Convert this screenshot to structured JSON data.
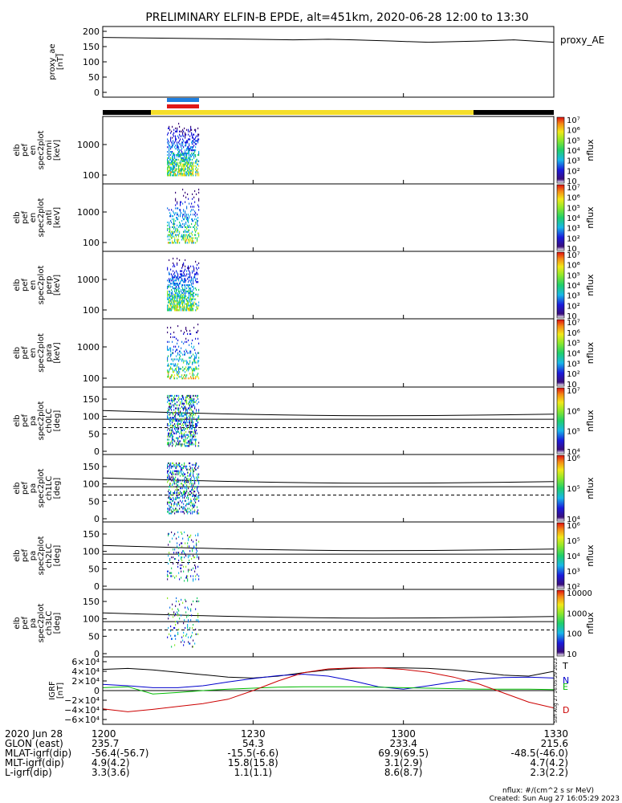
{
  "title": "PRELIMINARY ELFIN-B EPDE, alt=451km, 2020-06-28 12:00 to 13:30",
  "colors": {
    "sunlit_bar": "#f5de2a",
    "eclipse_bar": "#000000",
    "blue_marker": "#1e7fe0",
    "red_marker": "#e01818",
    "T": "#000000",
    "N": "#0000cc",
    "E": "#00bb00",
    "D": "#cc0000"
  },
  "chart_data": [
    {
      "id": "proxy_ae",
      "type": "line",
      "ylabel_lines": [
        "proxy_ae",
        "[nT]"
      ],
      "ylim": [
        0,
        200
      ],
      "yticks": [
        "0",
        "50",
        "100",
        "150",
        "200"
      ],
      "legend_label": "proxy_AE",
      "x_minutes": [
        0,
        10,
        20,
        30,
        38,
        45,
        50,
        58,
        65,
        75,
        82,
        90
      ],
      "y": [
        180,
        178,
        176,
        174,
        172,
        174,
        172,
        168,
        164,
        168,
        172,
        164
      ]
    },
    {
      "id": "spec_omni",
      "type": "heatmap",
      "ylabel_lines": [
        "elb",
        "pef",
        "en",
        "spec2plot",
        "omni",
        "[keV]"
      ],
      "ytick_labels": [
        "100",
        "1000"
      ],
      "colorbar": {
        "label": "nflux",
        "ticks": [
          "10",
          "10²",
          "10³",
          "10⁴",
          "10⁵",
          "10⁶",
          "10⁷"
        ]
      }
    },
    {
      "id": "spec_anti",
      "type": "heatmap",
      "ylabel_lines": [
        "elb",
        "pef",
        "en",
        "spec2plot",
        "anti",
        "[keV]"
      ],
      "ytick_labels": [
        "100",
        "1000"
      ],
      "colorbar": {
        "label": "nflux",
        "ticks": [
          "10",
          "10²",
          "10³",
          "10⁴",
          "10⁵",
          "10⁶",
          "10⁷"
        ]
      }
    },
    {
      "id": "spec_perp",
      "type": "heatmap",
      "ylabel_lines": [
        "elb",
        "pef",
        "en",
        "spec2plot",
        "perp",
        "[keV]"
      ],
      "ytick_labels": [
        "100",
        "1000"
      ],
      "colorbar": {
        "label": "nflux",
        "ticks": [
          "10",
          "10²",
          "10³",
          "10⁴",
          "10⁵",
          "10⁶",
          "10⁷"
        ]
      }
    },
    {
      "id": "spec_para",
      "type": "heatmap",
      "ylabel_lines": [
        "elb",
        "pef",
        "en",
        "spec2plot",
        "para",
        "[keV]"
      ],
      "ytick_labels": [
        "100",
        "1000"
      ],
      "colorbar": {
        "label": "nflux",
        "ticks": [
          "10",
          "10²",
          "10³",
          "10⁴",
          "10⁵",
          "10⁶",
          "10⁷"
        ]
      }
    },
    {
      "id": "pa_ch0",
      "type": "heatmap",
      "ylabel_lines": [
        "elb",
        "pef",
        "pa",
        "spec2plot",
        "ch0LC",
        "[deg]"
      ],
      "ylim": [
        0,
        180
      ],
      "yticks": [
        "0",
        "50",
        "100",
        "150"
      ],
      "colorbar": {
        "label": "nflux",
        "ticks": [
          "10⁴",
          "10⁵",
          "10⁶",
          "10⁷"
        ]
      }
    },
    {
      "id": "pa_ch1",
      "type": "heatmap",
      "ylabel_lines": [
        "elb",
        "pef",
        "pa",
        "spec2plot",
        "ch1LC",
        "[deg]"
      ],
      "ylim": [
        0,
        180
      ],
      "yticks": [
        "0",
        "50",
        "100",
        "150"
      ],
      "colorbar": {
        "label": "nflux",
        "ticks": [
          "10⁴",
          "10⁵",
          "10⁶"
        ]
      }
    },
    {
      "id": "pa_ch2",
      "type": "heatmap",
      "ylabel_lines": [
        "elb",
        "pef",
        "pa",
        "spec2plot",
        "ch2LC",
        "[deg]"
      ],
      "ylim": [
        0,
        180
      ],
      "yticks": [
        "0",
        "50",
        "100",
        "150"
      ],
      "colorbar": {
        "label": "nflux",
        "ticks": [
          "10²",
          "10³",
          "10⁴",
          "10⁵",
          "10⁶"
        ]
      }
    },
    {
      "id": "pa_ch3",
      "type": "heatmap",
      "ylabel_lines": [
        "elb",
        "pef",
        "pa",
        "spec2plot",
        "ch3LC",
        "[deg]"
      ],
      "ylim": [
        0,
        180
      ],
      "yticks": [
        "0",
        "50",
        "100",
        "150"
      ],
      "colorbar": {
        "label": "nflux",
        "ticks": [
          "10",
          "100",
          "1000",
          "10000"
        ]
      }
    },
    {
      "id": "igrf",
      "type": "line",
      "ylabel_lines": [
        "IGRF",
        "[nT]"
      ],
      "ylim": [
        -60000,
        60000
      ],
      "yticks": [
        "−6×10⁴",
        "−4×10⁴",
        "−2×10⁴",
        "0",
        "2×10⁴",
        "4×10⁴",
        "6×10⁴"
      ],
      "x_minutes": [
        0,
        5,
        10,
        15,
        20,
        25,
        30,
        35,
        40,
        45,
        50,
        55,
        60,
        65,
        70,
        75,
        80,
        85,
        90
      ],
      "series": [
        {
          "name": "T",
          "values": [
            44000,
            46000,
            43000,
            38000,
            33000,
            28000,
            26000,
            30000,
            37000,
            43000,
            46000,
            47000,
            47000,
            46000,
            43000,
            38000,
            32000,
            30000,
            40000
          ]
        },
        {
          "name": "N",
          "values": [
            13000,
            10000,
            6000,
            6000,
            10000,
            18000,
            25000,
            31000,
            34000,
            30000,
            20000,
            8000,
            3000,
            10000,
            18000,
            24000,
            27000,
            28000,
            26000
          ]
        },
        {
          "name": "E",
          "values": [
            6000,
            8000,
            -7000,
            -4000,
            0,
            3000,
            5000,
            7000,
            8000,
            8000,
            8000,
            7000,
            6000,
            5000,
            4000,
            3000,
            3000,
            3000,
            2000
          ]
        },
        {
          "name": "D",
          "values": [
            -38000,
            -44000,
            -39000,
            -33000,
            -27000,
            -18000,
            0,
            20000,
            37000,
            45000,
            47000,
            47000,
            44000,
            38000,
            28000,
            14000,
            -5000,
            -24000,
            -36000
          ]
        }
      ],
      "side_stamp": "Sun Aug 27 16:05:29 2023"
    }
  ],
  "xaxis": {
    "labels": [
      "2020 Jun 28",
      "GLON (east)",
      "MLAT-igrf(dip)",
      "MLT-igrf(dip)",
      "L-igrf(dip)"
    ],
    "ticks": [
      {
        "time": "1200",
        "glon": "235.7",
        "mlat": "-56.4(-56.7)",
        "mlt": "4.9(4.2)",
        "l": "3.3(3.6)"
      },
      {
        "time": "1230",
        "glon": "54.3",
        "mlat": "-15.5(-6.6)",
        "mlt": "15.8(15.8)",
        "l": "1.1(1.1)"
      },
      {
        "time": "1300",
        "glon": "233.4",
        "mlat": "69.9(69.5)",
        "mlt": "3.1(2.9)",
        "l": "8.6(8.7)"
      },
      {
        "time": "1330",
        "glon": "215.6",
        "mlat": "-48.5(-46.0)",
        "mlt": "4.7(4.2)",
        "l": "2.3(2.2)"
      }
    ]
  },
  "footer": {
    "units": "nflux: #/(cm^2 s sr MeV)",
    "created": "Created: Sun Aug 27 16:05:29 2023"
  }
}
